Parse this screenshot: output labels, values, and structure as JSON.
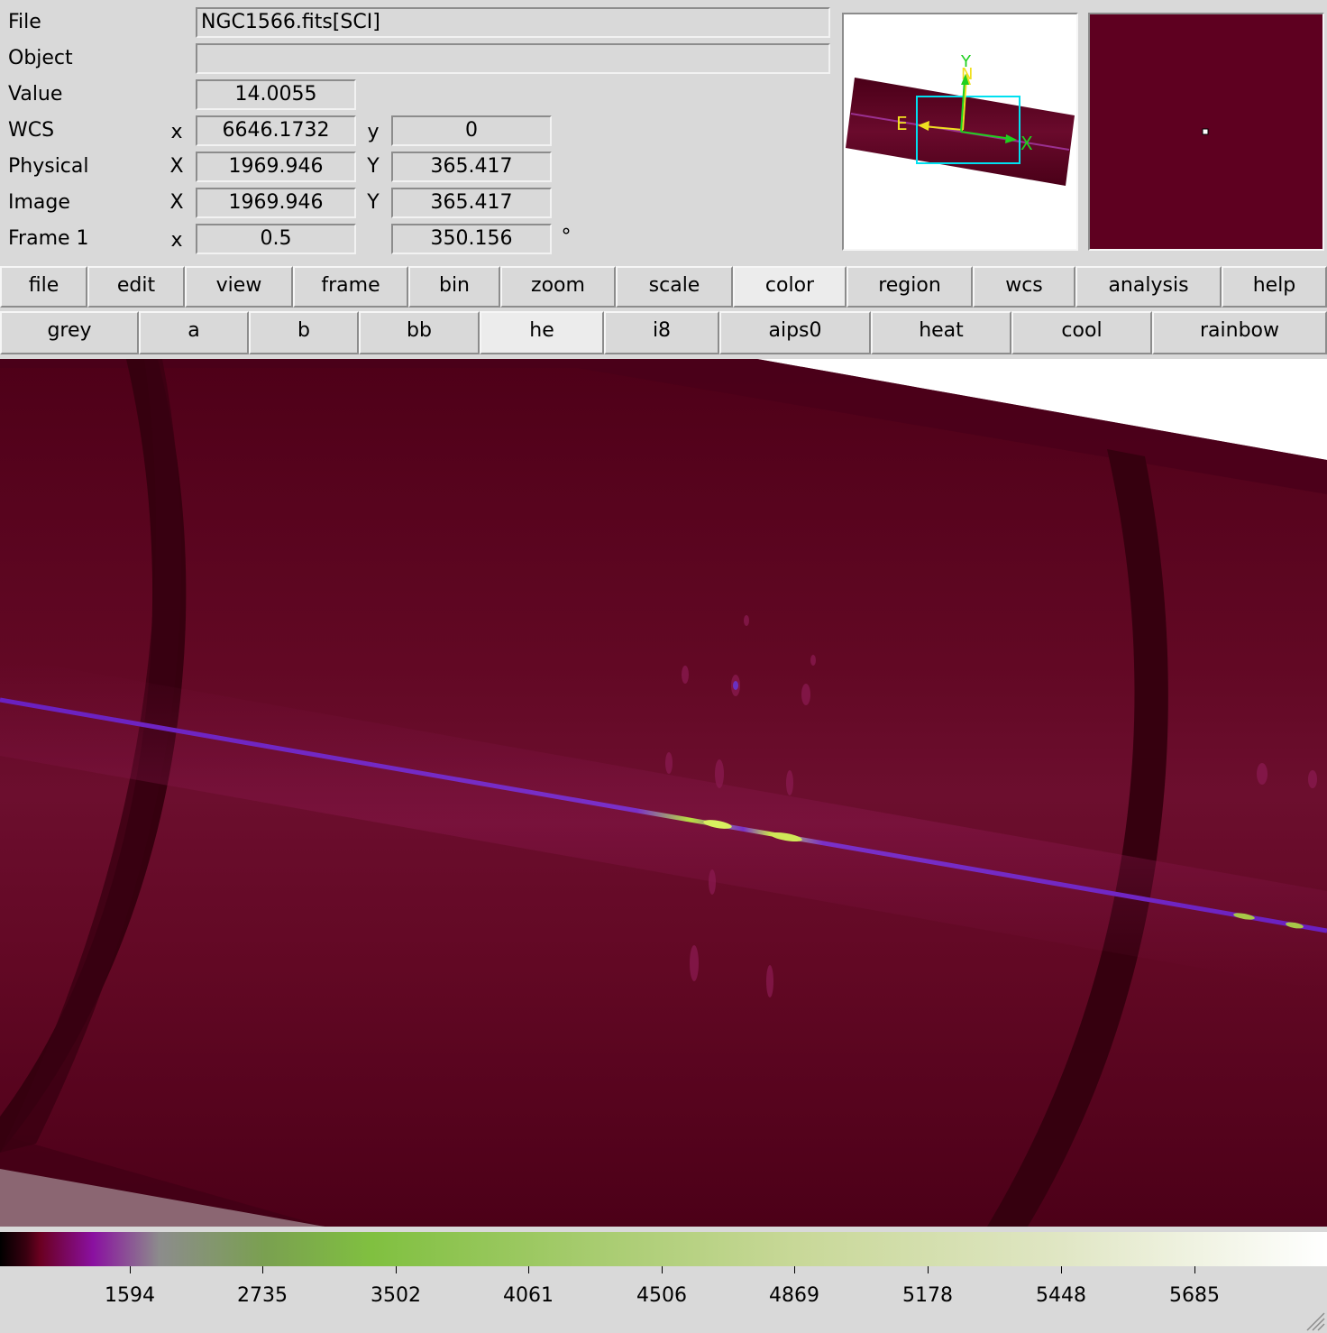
{
  "info_panel": {
    "labels": {
      "file": "File",
      "object": "Object",
      "value": "Value",
      "wcs": "WCS",
      "physical": "Physical",
      "image": "Image",
      "frame": "Frame 1"
    },
    "file_value": "NGC1566.fits[SCI]",
    "object_value": "",
    "value_value": "14.0055",
    "wcs": {
      "x_label": "x",
      "x_value": "6646.1732",
      "y_label": "y",
      "y_value": "0"
    },
    "physical": {
      "x_label": "X",
      "x_value": "1969.946",
      "y_label": "Y",
      "y_value": "365.417"
    },
    "image": {
      "x_label": "X",
      "x_value": "1969.946",
      "y_label": "Y",
      "y_value": "365.417"
    },
    "frame": {
      "x_label": "x",
      "zoom_value": "0.5",
      "angle_value": "350.156",
      "angle_unit": "°"
    }
  },
  "panner": {
    "compass": {
      "north": "N",
      "east": "E",
      "x_axis": "X",
      "y_axis": "Y"
    },
    "colors": {
      "compass": "#f0e020",
      "axes": "#20d020",
      "view_box": "#00e0f0"
    }
  },
  "main_menu": [
    {
      "label": "file"
    },
    {
      "label": "edit"
    },
    {
      "label": "view"
    },
    {
      "label": "frame"
    },
    {
      "label": "bin"
    },
    {
      "label": "zoom"
    },
    {
      "label": "scale"
    },
    {
      "label": "color",
      "active": true
    },
    {
      "label": "region"
    },
    {
      "label": "wcs"
    },
    {
      "label": "analysis"
    },
    {
      "label": "help"
    }
  ],
  "color_menu": [
    {
      "label": "grey"
    },
    {
      "label": "a"
    },
    {
      "label": "b"
    },
    {
      "label": "bb"
    },
    {
      "label": "he",
      "active": true
    },
    {
      "label": "i8"
    },
    {
      "label": "aips0"
    },
    {
      "label": "heat"
    },
    {
      "label": "cool"
    },
    {
      "label": "rainbow"
    }
  ],
  "colorbar": {
    "colormap": "he",
    "tick_labels": [
      "1594",
      "2735",
      "3502",
      "4061",
      "4506",
      "4869",
      "5178",
      "5448",
      "5685"
    ],
    "colors": [
      "#000000",
      "#6a0020",
      "#8a10a0",
      "#8c8c8c",
      "#80c040",
      "#c8d898",
      "#ffffff"
    ]
  },
  "image": {
    "background": "#5c0020",
    "spectrum_color": "#7a28c8",
    "emission_color": "#b8e040"
  }
}
